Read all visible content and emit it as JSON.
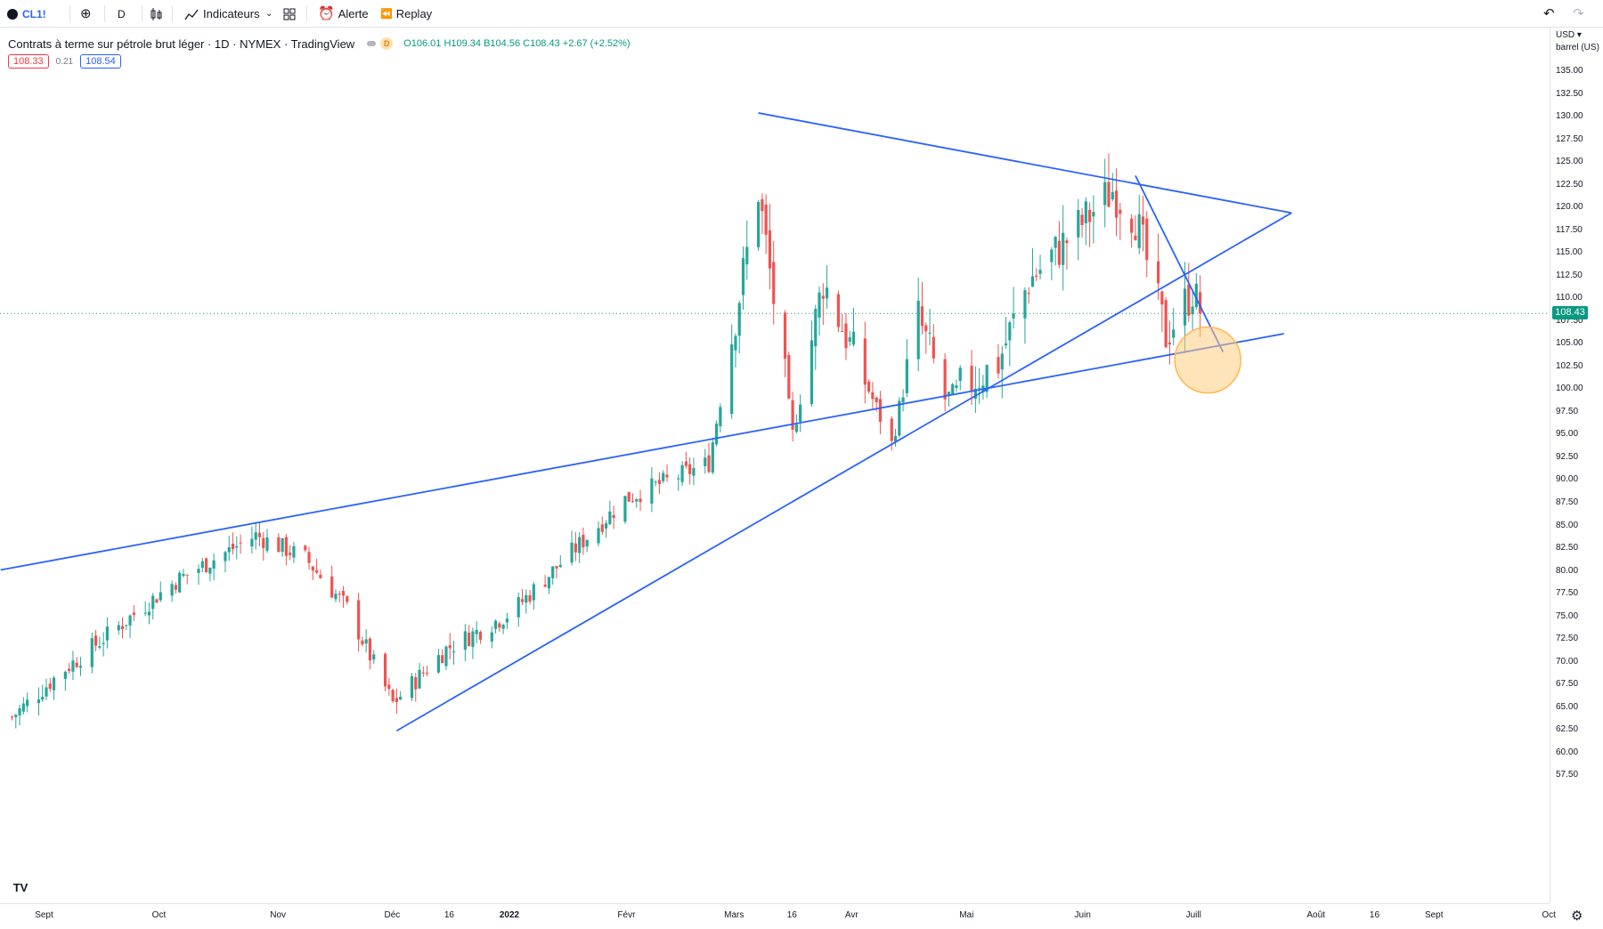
{
  "toolbar": {
    "symbol": "CL1!",
    "interval": "D",
    "indicators_label": "Indicateurs",
    "alert_label": "Alerte",
    "replay_label": "Replay"
  },
  "legend": {
    "title": "Contrats à terme sur pétrole brut léger · 1D · NYMEX · TradingView",
    "d_badge": "D",
    "ohlc": "O106.01 H109.34 B104.56 C108.43 +2.67 (+2.52%)",
    "bid": "108.33",
    "spread": "0.21",
    "ask": "108.54"
  },
  "price_axis": {
    "currency": "USD ▾",
    "unit": "barrel (US)",
    "current_price": "108.43"
  },
  "colors": {
    "up": "#26a69a",
    "down": "#ef5350",
    "trendline": "#2962ff",
    "highlight": "#ffcc80"
  },
  "chart_data": {
    "type": "candlestick",
    "symbol": "CL1!",
    "interval": "1D",
    "ylim": [
      56,
      137
    ],
    "y_ticks": [
      "135.00",
      "132.50",
      "130.00",
      "127.50",
      "125.00",
      "122.50",
      "120.00",
      "117.50",
      "115.00",
      "112.50",
      "110.00",
      "107.50",
      "105.00",
      "102.50",
      "100.00",
      "97.50",
      "95.00",
      "92.50",
      "90.00",
      "87.50",
      "85.00",
      "82.50",
      "80.00",
      "77.50",
      "75.00",
      "72.50",
      "70.00",
      "67.50",
      "65.00",
      "62.50",
      "60.00",
      "57.50"
    ],
    "x_ticks": [
      "Sept",
      "Oct",
      "Nov",
      "Déc",
      "16",
      "2022",
      "Févr",
      "Mars",
      "16",
      "Avr",
      "Mai",
      "Juin",
      "Juill",
      "Août",
      "16",
      "Sept",
      "Oct"
    ],
    "last_price": 108.43,
    "anchors": [
      {
        "date": "2021-08-23",
        "close": 64.0
      },
      {
        "date": "2021-09-05",
        "close": 69.0
      },
      {
        "date": "2021-10-05",
        "close": 79.0
      },
      {
        "date": "2021-10-26",
        "close": 84.0
      },
      {
        "date": "2021-11-08",
        "close": 81.5
      },
      {
        "date": "2021-11-19",
        "close": 76.0
      },
      {
        "date": "2021-12-01",
        "close": 65.5
      },
      {
        "date": "2021-12-15",
        "close": 71.5
      },
      {
        "date": "2022-01-01",
        "close": 75.5
      },
      {
        "date": "2022-01-31",
        "close": 88.0
      },
      {
        "date": "2022-02-22",
        "close": 92.0
      },
      {
        "date": "2022-03-07",
        "close": 122.0
      },
      {
        "date": "2022-03-16",
        "close": 95.0
      },
      {
        "date": "2022-03-24",
        "close": 112.0
      },
      {
        "date": "2022-04-11",
        "close": 94.0
      },
      {
        "date": "2022-04-18",
        "close": 108.0
      },
      {
        "date": "2022-04-25",
        "close": 99.0
      },
      {
        "date": "2022-05-09",
        "close": 103.0
      },
      {
        "date": "2022-05-17",
        "close": 112.0
      },
      {
        "date": "2022-06-08",
        "close": 122.0
      },
      {
        "date": "2022-06-14",
        "close": 119.0
      },
      {
        "date": "2022-06-22",
        "close": 106.0
      },
      {
        "date": "2022-06-29",
        "close": 111.0
      },
      {
        "date": "2022-07-01",
        "close": 108.43
      }
    ],
    "trendlines": [
      {
        "name": "upper-resistance",
        "from": {
          "date": "2022-03-07",
          "price": 130.5
        },
        "to": {
          "date": "2022-07-25",
          "price": 119.5
        }
      },
      {
        "name": "rising-support",
        "from": {
          "date": "2021-12-02",
          "price": 62.5
        },
        "to": {
          "date": "2022-07-25",
          "price": 119.5
        }
      },
      {
        "name": "long-trendline",
        "from": {
          "date": "2021-08-20",
          "price": 80.2
        },
        "to": {
          "date": "2022-07-23",
          "price": 106.2
        }
      },
      {
        "name": "short-downtrend",
        "from": {
          "date": "2022-06-14",
          "price": 123.6
        },
        "to": {
          "date": "2022-07-07",
          "price": 104.2
        }
      }
    ],
    "highlight": {
      "date": "2022-07-03",
      "price": 103.3
    }
  }
}
